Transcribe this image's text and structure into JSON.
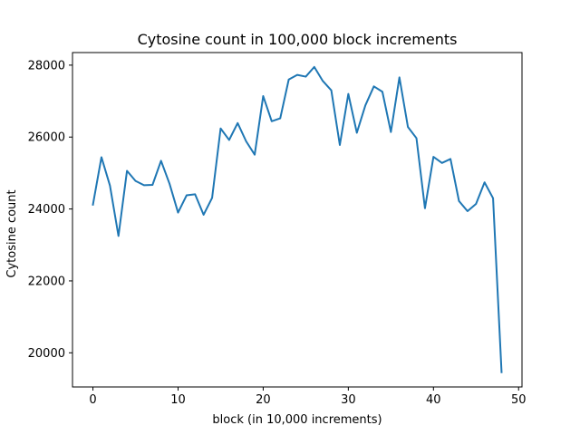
{
  "chart_data": {
    "type": "line",
    "title": "Cytosine count in 100,000 block increments",
    "xlabel": "block (in 10,000 increments)",
    "ylabel": "Cytosine count",
    "xlim": [
      -2.4,
      50.4
    ],
    "ylim": [
      19050,
      28350
    ],
    "xticks": [
      0,
      10,
      20,
      30,
      40,
      50
    ],
    "yticks": [
      20000,
      22000,
      24000,
      26000,
      28000
    ],
    "grid": false,
    "legend": "none",
    "colors": {
      "line": "#1f77b4",
      "axes": "#000000",
      "background": "#ffffff"
    },
    "series": [
      {
        "x": [
          0,
          1,
          2,
          3,
          4,
          5,
          6,
          7,
          8,
          9,
          10,
          11,
          12,
          13,
          14,
          15,
          16,
          17,
          18,
          19,
          20,
          21,
          22,
          23,
          24,
          25,
          26,
          27,
          28,
          29,
          30,
          31,
          32,
          33,
          34,
          35,
          36,
          37,
          38,
          39,
          40,
          41,
          42,
          43,
          44,
          45,
          46,
          47,
          48
        ],
        "values": [
          24120,
          25440,
          24650,
          23250,
          25060,
          24780,
          24660,
          24670,
          25340,
          24700,
          23900,
          24380,
          24410,
          23840,
          24310,
          26240,
          25920,
          26390,
          25880,
          25510,
          27140,
          26440,
          26520,
          27600,
          27730,
          27680,
          27950,
          27560,
          27300,
          25780,
          27200,
          26120,
          26880,
          27410,
          27260,
          26140,
          27660,
          26280,
          25970,
          24020,
          25450,
          25280,
          25390,
          24220,
          23940,
          24140,
          24740,
          24300,
          19460
        ]
      }
    ]
  }
}
